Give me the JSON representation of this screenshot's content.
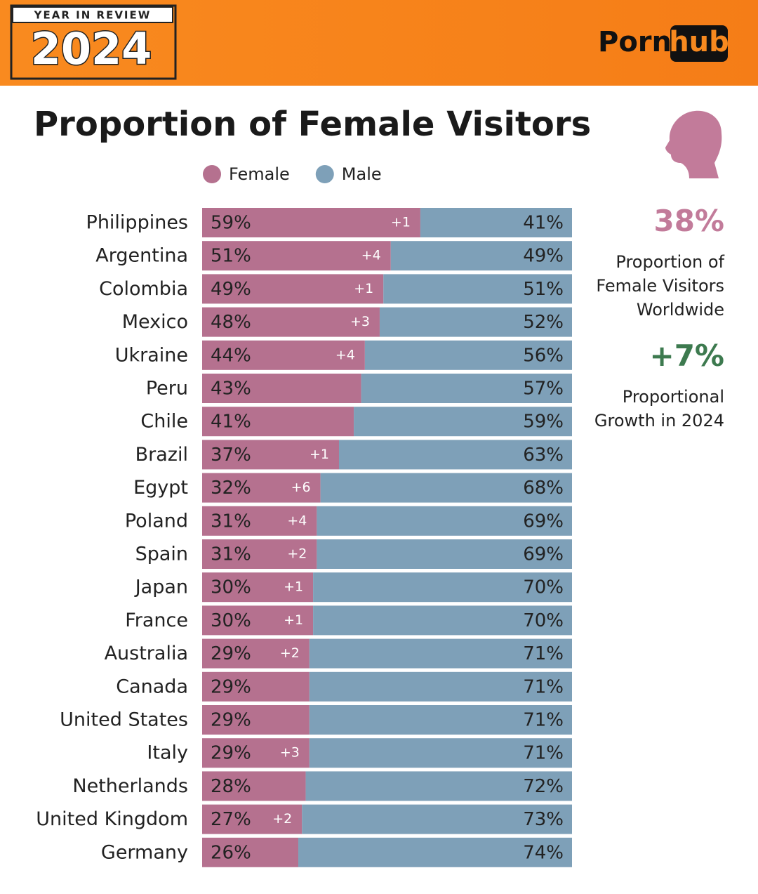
{
  "header": {
    "badge_top": "YEAR IN REVIEW",
    "badge_year": "2024",
    "logo_left": "Porn",
    "logo_right": "hub"
  },
  "chart_data": {
    "type": "bar",
    "stacked": true,
    "orientation": "horizontal",
    "title": "Proportion of Female Visitors",
    "categories": [
      "Philippines",
      "Argentina",
      "Colombia",
      "Mexico",
      "Ukraine",
      "Peru",
      "Chile",
      "Brazil",
      "Egypt",
      "Poland",
      "Spain",
      "Japan",
      "France",
      "Australia",
      "Canada",
      "United States",
      "Italy",
      "Netherlands",
      "United Kingdom",
      "Germany"
    ],
    "series": [
      {
        "name": "Female",
        "color": "#b5718f",
        "values": [
          59,
          51,
          49,
          48,
          44,
          43,
          41,
          37,
          32,
          31,
          31,
          30,
          30,
          29,
          29,
          29,
          29,
          28,
          27,
          26
        ],
        "value_labels": [
          "59%",
          "51%",
          "49%",
          "48%",
          "44%",
          "43%",
          "41%",
          "37%",
          "32%",
          "31%",
          "31%",
          "30%",
          "30%",
          "29%",
          "29%",
          "29%",
          "29%",
          "28%",
          "27%",
          "26%"
        ]
      },
      {
        "name": "Male",
        "color": "#7ea0b8",
        "values": [
          41,
          49,
          51,
          52,
          56,
          57,
          59,
          63,
          68,
          69,
          69,
          70,
          70,
          71,
          71,
          71,
          71,
          72,
          73,
          74
        ],
        "value_labels": [
          "41%",
          "49%",
          "51%",
          "52%",
          "56%",
          "57%",
          "59%",
          "63%",
          "68%",
          "69%",
          "69%",
          "70%",
          "70%",
          "71%",
          "71%",
          "71%",
          "71%",
          "72%",
          "73%",
          "74%"
        ]
      }
    ],
    "growth": {
      "values": [
        1,
        4,
        1,
        3,
        4,
        null,
        null,
        1,
        6,
        4,
        2,
        1,
        1,
        2,
        null,
        null,
        3,
        null,
        2,
        null
      ],
      "value_labels": [
        "+1",
        "+4",
        "+1",
        "+3",
        "+4",
        null,
        null,
        "+1",
        "+6",
        "+4",
        "+2",
        "+1",
        "+1",
        "+2",
        null,
        null,
        "+3",
        null,
        "+2",
        null
      ]
    },
    "legend": "top"
  },
  "side_stats": [
    {
      "value": "38%",
      "text": "Proportion of Female Visitors Worldwide",
      "color": "#c27b9a"
    },
    {
      "value": "+7%",
      "text": "Proportional Growth in 2024",
      "color": "#3d7a4f"
    }
  ]
}
